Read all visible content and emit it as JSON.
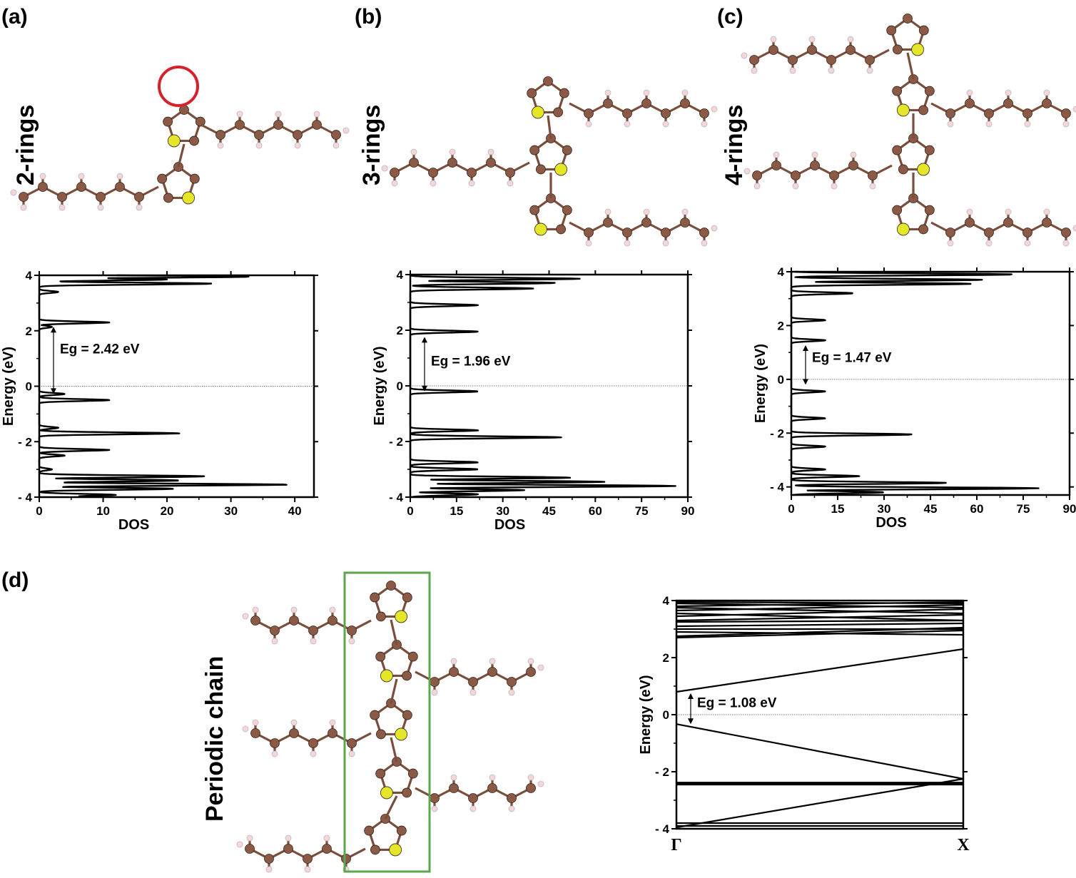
{
  "panels": [
    {
      "letter": "(a)",
      "label": "2-rings"
    },
    {
      "letter": "(b)",
      "label": "3-rings"
    },
    {
      "letter": "(c)",
      "label": "4-rings"
    },
    {
      "letter": "(d)",
      "label": "Periodic chain"
    }
  ],
  "colors": {
    "carbon": "#8b5a46",
    "sulfur": "#e4e62a",
    "hydrogen": "#f0d8dc",
    "box": "#5aa84a",
    "marker": "#d6202a",
    "line": "#000000"
  },
  "chart_data": [
    {
      "type": "line",
      "panel": "(a)",
      "xlabel": "DOS",
      "ylabel": "Energy (eV)",
      "xlim": [
        0,
        43
      ],
      "ylim": [
        -4,
        4
      ],
      "xticks": [
        0,
        10,
        20,
        30,
        40
      ],
      "yticks": [
        -4,
        -2,
        0,
        2,
        4
      ],
      "gap_label": "Eg = 2.42 eV",
      "gap": [
        -0.28,
        2.14
      ],
      "peaks": [
        [
          -4.0,
          10
        ],
        [
          -3.92,
          12
        ],
        [
          -3.7,
          21
        ],
        [
          -3.55,
          39
        ],
        [
          -3.4,
          22
        ],
        [
          -3.25,
          26
        ],
        [
          -3.0,
          2
        ],
        [
          -2.5,
          4
        ],
        [
          -2.3,
          11
        ],
        [
          -1.7,
          22
        ],
        [
          -1.5,
          3
        ],
        [
          -0.5,
          11
        ],
        [
          -0.28,
          4
        ],
        [
          2.14,
          2
        ],
        [
          2.3,
          11
        ],
        [
          3.4,
          3
        ],
        [
          3.7,
          27
        ],
        [
          3.85,
          20
        ],
        [
          3.95,
          33
        ]
      ]
    },
    {
      "type": "line",
      "panel": "(b)",
      "xlabel": "DOS",
      "ylabel": "Energy (eV)",
      "xlim": [
        0,
        90
      ],
      "ylim": [
        -4,
        4
      ],
      "xticks": [
        0,
        15,
        30,
        45,
        60,
        75,
        90
      ],
      "yticks": [
        -4,
        -2,
        0,
        2,
        4
      ],
      "gap_label": "Eg =  1.96 eV",
      "gap": [
        -0.2,
        1.76
      ],
      "peaks": [
        [
          -3.9,
          22
        ],
        [
          -3.75,
          37
        ],
        [
          -3.6,
          86
        ],
        [
          -3.45,
          63
        ],
        [
          -3.3,
          52
        ],
        [
          -3.0,
          22
        ],
        [
          -2.75,
          22
        ],
        [
          -1.85,
          49
        ],
        [
          -1.6,
          22
        ],
        [
          -0.2,
          22
        ],
        [
          1.95,
          22
        ],
        [
          2.9,
          22
        ],
        [
          3.5,
          40
        ],
        [
          3.7,
          47
        ],
        [
          3.85,
          55
        ]
      ]
    },
    {
      "type": "line",
      "panel": "(c)",
      "xlabel": "DOS",
      "ylabel": "Energy (eV)",
      "xlim": [
        0,
        90
      ],
      "ylim": [
        -4.3,
        4
      ],
      "xticks": [
        0,
        15,
        30,
        45,
        60,
        75,
        90
      ],
      "yticks": [
        -4,
        -2,
        0,
        2,
        4
      ],
      "gap_label": "Eg = 1.47 eV",
      "gap": [
        -0.2,
        1.27
      ],
      "peaks": [
        [
          -4.2,
          30
        ],
        [
          -4.05,
          80
        ],
        [
          -3.85,
          50
        ],
        [
          -3.6,
          22
        ],
        [
          -3.35,
          11
        ],
        [
          -2.5,
          11
        ],
        [
          -2.05,
          39
        ],
        [
          -1.45,
          11
        ],
        [
          -0.45,
          11
        ],
        [
          1.45,
          11
        ],
        [
          2.2,
          11
        ],
        [
          3.2,
          20
        ],
        [
          3.55,
          58
        ],
        [
          3.7,
          62
        ],
        [
          3.9,
          72
        ]
      ]
    },
    {
      "type": "line",
      "panel": "(d)",
      "xlabel": "",
      "ylabel": "Energy (eV)",
      "ylim": [
        -4,
        4
      ],
      "yticks": [
        -4,
        -2,
        0,
        2,
        4
      ],
      "xticks_labels": [
        "Γ",
        "X"
      ],
      "gap_label": "Eg = 1.08 eV",
      "gap": [
        -0.33,
        0.75
      ],
      "bands": [
        [
          0.8,
          2.3
        ],
        [
          -0.33,
          -2.25
        ],
        [
          -2.38,
          -2.38
        ],
        [
          -2.42,
          -2.42
        ],
        [
          -2.45,
          -2.45
        ],
        [
          -3.95,
          -2.25
        ],
        [
          -3.8,
          -3.8
        ],
        [
          -3.9,
          -3.9
        ],
        [
          2.7,
          2.95
        ],
        [
          2.75,
          3.05
        ],
        [
          2.9,
          2.8
        ],
        [
          3.0,
          3.0
        ],
        [
          3.1,
          3.2
        ],
        [
          3.25,
          3.3
        ],
        [
          3.3,
          3.5
        ],
        [
          3.45,
          3.7
        ],
        [
          3.55,
          3.3
        ],
        [
          3.65,
          3.85
        ],
        [
          3.75,
          3.55
        ],
        [
          3.8,
          3.95
        ],
        [
          3.9,
          3.75
        ],
        [
          3.95,
          3.9
        ]
      ]
    }
  ]
}
